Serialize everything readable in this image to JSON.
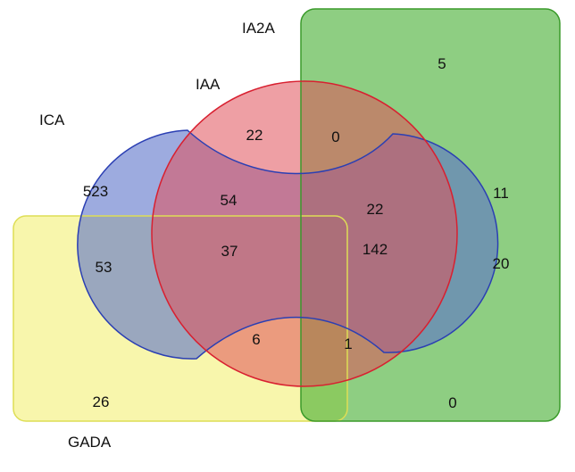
{
  "sets": {
    "ica": {
      "label": "ICA",
      "fill": "#5b73c9",
      "stroke": "#2b3fb3"
    },
    "iaa": {
      "label": "IAA",
      "fill": "#e0505a",
      "stroke": "#d82030"
    },
    "ia2a": {
      "label": "IA2A",
      "fill": "#42ad2e",
      "stroke": "#3a9a2a"
    },
    "gada": {
      "label": "GADA",
      "fill": "#f3f074",
      "stroke": "#dede55"
    }
  },
  "regions": {
    "ica_only": "523",
    "iaa_only": "22",
    "ia2a_only": "5",
    "gada_only": "26",
    "iaa_ia2a": "0",
    "ica_iaa": "54",
    "ica_iaa_ia2a": "22",
    "ica_ia2a": "11",
    "ica_gada": "53",
    "ica_iaa_gada": "37",
    "all_four": "142",
    "ica_ia2a_gada": "20",
    "iaa_gada": "6",
    "iaa_ia2a_gada": "1",
    "ia2a_gada": "0"
  }
}
